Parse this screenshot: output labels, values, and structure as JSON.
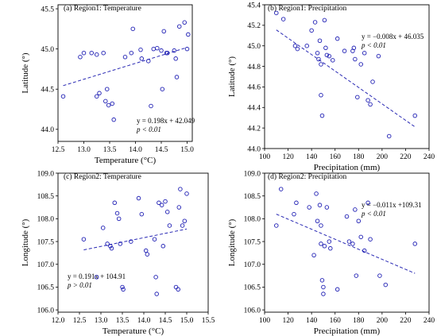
{
  "colors": {
    "marker": "#1f1fb4",
    "trend": "#2a2ab4",
    "axis": "#000000"
  },
  "chart_data": [
    {
      "type": "scatter",
      "title": "(a) Region1: Temperature",
      "xlabel": "Temperature (°C)",
      "ylabel": "Latitude (°)",
      "xlim": [
        12.5,
        15.1
      ],
      "ylim": [
        43.85,
        45.55
      ],
      "xticks": [
        "12.5",
        "13.0",
        "13.5",
        "14.0",
        "14.5",
        "15.0"
      ],
      "xtick_values": [
        12.5,
        13.0,
        13.5,
        14.0,
        14.5,
        15.0
      ],
      "yticks": [
        "44.0",
        "44.5",
        "45.0",
        "45.5"
      ],
      "ytick_values": [
        44.0,
        44.5,
        45.0,
        45.5
      ],
      "equation": "y = 0.198x + 42.049",
      "pvalue": "p < 0.01",
      "equation_pos": "bottom-right",
      "trend": {
        "slope": 0.198,
        "intercept": 42.049,
        "x_range": [
          12.6,
          15.0
        ]
      },
      "points": [
        [
          12.6,
          44.41
        ],
        [
          12.93,
          44.9
        ],
        [
          13.0,
          44.95
        ],
        [
          13.15,
          44.95
        ],
        [
          13.25,
          44.93
        ],
        [
          13.25,
          44.41
        ],
        [
          13.3,
          44.45
        ],
        [
          13.38,
          44.95
        ],
        [
          13.42,
          44.35
        ],
        [
          13.45,
          44.5
        ],
        [
          13.48,
          44.3
        ],
        [
          13.55,
          44.32
        ],
        [
          13.58,
          44.12
        ],
        [
          13.8,
          44.9
        ],
        [
          13.92,
          44.95
        ],
        [
          13.95,
          45.25
        ],
        [
          14.1,
          44.99
        ],
        [
          14.12,
          44.88
        ],
        [
          14.25,
          44.85
        ],
        [
          14.3,
          44.29
        ],
        [
          14.35,
          45.0
        ],
        [
          14.42,
          45.01
        ],
        [
          14.5,
          44.98
        ],
        [
          14.52,
          44.5
        ],
        [
          14.55,
          45.22
        ],
        [
          14.6,
          44.95
        ],
        [
          14.62,
          44.95
        ],
        [
          14.75,
          44.98
        ],
        [
          14.78,
          44.88
        ],
        [
          14.8,
          44.65
        ],
        [
          14.85,
          45.28
        ],
        [
          14.95,
          45.33
        ],
        [
          15.0,
          45.0
        ],
        [
          15.02,
          45.18
        ]
      ]
    },
    {
      "type": "scatter",
      "title": "(b) Region1: Precipitation",
      "xlabel": "Precipitation (mm)",
      "ylabel": "Latitude (°)",
      "xlim": [
        100,
        240
      ],
      "ylim": [
        44.0,
        45.4
      ],
      "xticks": [
        "100",
        "120",
        "140",
        "160",
        "180",
        "200",
        "220",
        "240"
      ],
      "xtick_values": [
        100,
        120,
        140,
        160,
        180,
        200,
        220,
        240
      ],
      "yticks": [
        "44.0",
        "44.2",
        "44.4",
        "44.6",
        "44.8",
        "45.0",
        "45.2",
        "45.4"
      ],
      "ytick_values": [
        44.0,
        44.2,
        44.4,
        44.6,
        44.8,
        45.0,
        45.2,
        45.4
      ],
      "equation": "y = −0.008x + 46.035",
      "pvalue": "p < 0.01",
      "equation_pos": "top-right",
      "trend": {
        "slope": -0.008,
        "intercept": 46.035,
        "x_range": [
          110,
          228
        ]
      },
      "points": [
        [
          110,
          45.32
        ],
        [
          116,
          45.26
        ],
        [
          126,
          45.0
        ],
        [
          128,
          44.97
        ],
        [
          136,
          45.0
        ],
        [
          140,
          45.15
        ],
        [
          143,
          45.23
        ],
        [
          145,
          44.93
        ],
        [
          146,
          44.87
        ],
        [
          147,
          45.05
        ],
        [
          148,
          44.82
        ],
        [
          148,
          44.52
        ],
        [
          149,
          44.32
        ],
        [
          151,
          45.25
        ],
        [
          152,
          44.98
        ],
        [
          153,
          44.91
        ],
        [
          155,
          44.9
        ],
        [
          158,
          44.86
        ],
        [
          162,
          45.07
        ],
        [
          168,
          44.95
        ],
        [
          175,
          44.95
        ],
        [
          176,
          44.98
        ],
        [
          177,
          44.87
        ],
        [
          179,
          44.5
        ],
        [
          182,
          44.82
        ],
        [
          185,
          44.93
        ],
        [
          188,
          44.47
        ],
        [
          190,
          44.43
        ],
        [
          192,
          44.65
        ],
        [
          197,
          44.9
        ],
        [
          206,
          44.12
        ],
        [
          228,
          44.32
        ]
      ]
    },
    {
      "type": "scatter",
      "title": "(c) Region2: Temperature",
      "xlabel": "Temperature (°C)",
      "ylabel": "Longitude (°)",
      "xlim": [
        12.0,
        15.5
      ],
      "ylim": [
        105.95,
        109.0
      ],
      "xticks": [
        "12.0",
        "12.5",
        "13.0",
        "13.5",
        "14.0",
        "14.5",
        "15.0",
        "15.5"
      ],
      "xtick_values": [
        12.0,
        12.5,
        13.0,
        13.5,
        14.0,
        14.5,
        15.0,
        15.5
      ],
      "yticks": [
        "106.0",
        "106.5",
        "107.0",
        "107.5",
        "108.0",
        "108.5",
        "109.0"
      ],
      "ytick_values": [
        106.0,
        106.5,
        107.0,
        107.5,
        108.0,
        108.5,
        109.0
      ],
      "equation": "y = 0.191x + 104.91",
      "pvalue": "p > 0.01",
      "equation_pos": "bottom-left",
      "trend": {
        "slope": 0.191,
        "intercept": 104.91,
        "x_range": [
          12.6,
          15.0
        ]
      },
      "points": [
        [
          12.6,
          107.55
        ],
        [
          12.9,
          106.72
        ],
        [
          13.05,
          107.8
        ],
        [
          13.15,
          107.45
        ],
        [
          13.22,
          107.4
        ],
        [
          13.25,
          107.35
        ],
        [
          13.32,
          108.35
        ],
        [
          13.38,
          108.12
        ],
        [
          13.42,
          108.0
        ],
        [
          13.45,
          107.45
        ],
        [
          13.5,
          106.5
        ],
        [
          13.52,
          106.45
        ],
        [
          13.7,
          107.5
        ],
        [
          13.88,
          108.45
        ],
        [
          13.95,
          108.1
        ],
        [
          14.05,
          107.3
        ],
        [
          14.08,
          107.22
        ],
        [
          14.25,
          107.55
        ],
        [
          14.28,
          106.72
        ],
        [
          14.3,
          106.35
        ],
        [
          14.35,
          108.35
        ],
        [
          14.42,
          108.3
        ],
        [
          14.45,
          107.4
        ],
        [
          14.5,
          108.38
        ],
        [
          14.55,
          108.15
        ],
        [
          14.6,
          107.85
        ],
        [
          14.75,
          106.5
        ],
        [
          14.8,
          106.45
        ],
        [
          14.82,
          108.25
        ],
        [
          14.85,
          108.65
        ],
        [
          14.9,
          107.85
        ],
        [
          14.95,
          107.95
        ],
        [
          15.0,
          108.55
        ]
      ]
    },
    {
      "type": "scatter",
      "title": "(d) Region2: Precipitation",
      "xlabel": "Precipitation (mm)",
      "ylabel": "Longitude (°)",
      "xlim": [
        100,
        240
      ],
      "ylim": [
        105.95,
        109.0
      ],
      "xticks": [
        "100",
        "120",
        "140",
        "160",
        "180",
        "200",
        "220",
        "240"
      ],
      "xtick_values": [
        100,
        120,
        140,
        160,
        180,
        200,
        220,
        240
      ],
      "yticks": [
        "106.0",
        "106.5",
        "107.0",
        "107.5",
        "108.0",
        "108.5",
        "109.0"
      ],
      "ytick_values": [
        106.0,
        106.5,
        107.0,
        107.5,
        108.0,
        108.5,
        109.0
      ],
      "equation": "y = −0.011x +109.31",
      "pvalue": "p < 0.01",
      "equation_pos": "top-right",
      "trend": {
        "slope": -0.011,
        "intercept": 109.31,
        "x_range": [
          110,
          228
        ]
      },
      "points": [
        [
          110,
          107.85
        ],
        [
          114,
          108.65
        ],
        [
          125,
          108.1
        ],
        [
          127,
          108.35
        ],
        [
          138,
          108.25
        ],
        [
          142,
          107.2
        ],
        [
          144,
          108.55
        ],
        [
          145,
          107.95
        ],
        [
          147,
          108.3
        ],
        [
          148,
          107.45
        ],
        [
          148,
          107.85
        ],
        [
          149,
          106.65
        ],
        [
          150,
          106.5
        ],
        [
          150,
          106.35
        ],
        [
          151,
          107.4
        ],
        [
          153,
          108.25
        ],
        [
          155,
          107.5
        ],
        [
          156,
          107.35
        ],
        [
          162,
          106.45
        ],
        [
          170,
          108.05
        ],
        [
          172,
          107.5
        ],
        [
          175,
          107.45
        ],
        [
          177,
          108.2
        ],
        [
          178,
          106.75
        ],
        [
          180,
          107.95
        ],
        [
          182,
          107.6
        ],
        [
          185,
          107.3
        ],
        [
          188,
          108.35
        ],
        [
          190,
          107.55
        ],
        [
          198,
          106.75
        ],
        [
          203,
          106.55
        ],
        [
          228,
          107.45
        ]
      ]
    }
  ]
}
